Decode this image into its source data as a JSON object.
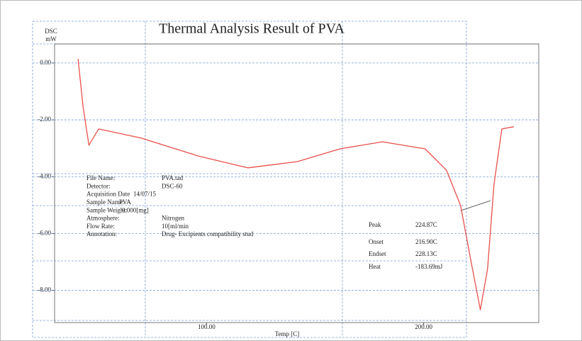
{
  "chart_data": {
    "type": "line",
    "title": "Thermal Analysis Result of PVA",
    "y_label": "DSC",
    "y_unit": "mW",
    "x_label": "Temp [C]",
    "series": [
      {
        "name": "PVA",
        "color": "#e8504a",
        "x": [
          40.8,
          43.1,
          45.8,
          50.3,
          69.9,
          96.1,
          119,
          141.8,
          161.4,
          181,
          200.7,
          210.5,
          217,
          221.9,
          226.1,
          229.4,
          232.4,
          236,
          241.5
        ],
        "values": [
          0.15,
          -1.52,
          -2.89,
          -2.32,
          -2.64,
          -3.27,
          -3.69,
          -3.47,
          -3.02,
          -2.77,
          -3.02,
          -3.77,
          -5.01,
          -7.01,
          -8.68,
          -7.26,
          -4.26,
          -2.32,
          -2.24
        ]
      }
    ],
    "xlim": [
      30,
      253
    ],
    "xticks": [
      {
        "value": 100,
        "label": "100.00"
      },
      {
        "value": 200,
        "label": "200.00"
      }
    ],
    "ylim": [
      -9.13,
      0.67
    ],
    "yticks": [
      {
        "value": 0,
        "label": "0.00"
      },
      {
        "value": -2,
        "label": "-2.00"
      },
      {
        "value": -4,
        "label": "-4.00"
      },
      {
        "value": -6,
        "label": "-6.00"
      },
      {
        "value": -8,
        "label": "-8.00"
      }
    ],
    "grid": true
  },
  "info_table": [
    {
      "label": "File Name:",
      "value": "PVA.tad"
    },
    {
      "label": "Detector:",
      "value": "DSC-60"
    },
    {
      "label": "Acquisition Date",
      "value": "14/07/15"
    },
    {
      "label": "Sample Name:",
      "value": "PVA"
    },
    {
      "label": "Sample Weight:",
      "value": "0.000[mg]"
    },
    {
      "label": "Atmosphere:",
      "value": "Nitrogen"
    },
    {
      "label": "Flow Rate:",
      "value": "10[ml/min"
    },
    {
      "label": "Annotation:",
      "value": "Drug- Excipients compatibility stud"
    }
  ],
  "results_table": [
    {
      "label": "Peak",
      "value": "224.87C"
    },
    {
      "label": "Onset",
      "value": "216.90C"
    },
    {
      "label": "Endset",
      "value": "228.13C"
    },
    {
      "label": "Heat",
      "value": "-183.69mJ"
    }
  ]
}
